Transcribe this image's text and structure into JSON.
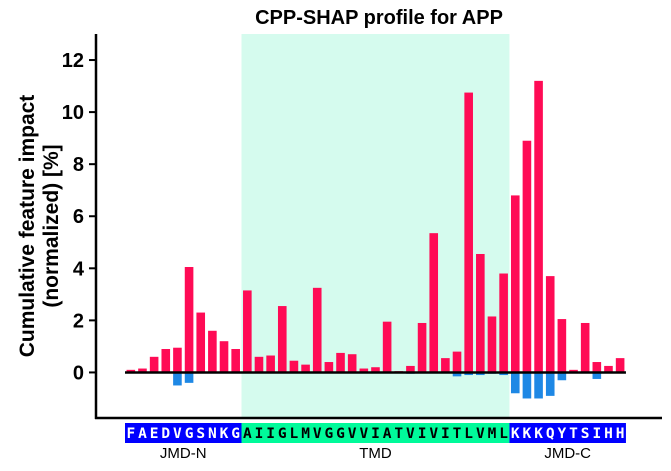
{
  "chart_data": {
    "type": "bar",
    "title": "CPP-SHAP profile for APP",
    "ylabel": "Cumulative feature impact\n(normalized) [%]",
    "xlabel": "",
    "ylim": [
      -1.75,
      13
    ],
    "yticks": [
      0,
      2,
      4,
      6,
      8,
      10,
      12
    ],
    "residues": [
      "F",
      "A",
      "E",
      "D",
      "V",
      "G",
      "S",
      "N",
      "K",
      "G",
      "A",
      "I",
      "I",
      "G",
      "L",
      "M",
      "V",
      "G",
      "G",
      "V",
      "V",
      "I",
      "A",
      "T",
      "V",
      "I",
      "V",
      "I",
      "T",
      "L",
      "V",
      "M",
      "L",
      "K",
      "K",
      "K",
      "Q",
      "Y",
      "T",
      "S",
      "I",
      "H",
      "H"
    ],
    "regions": [
      {
        "label": "JMD-N",
        "start": 0,
        "end": 10,
        "color": "#0000ff",
        "text_color": "#ffffff"
      },
      {
        "label": "TMD",
        "start": 10,
        "end": 33,
        "color": "#00fa9a",
        "text_color": "#000000",
        "shade": "#d5fbee"
      },
      {
        "label": "JMD-C",
        "start": 33,
        "end": 43,
        "color": "#0000ff",
        "text_color": "#ffffff"
      }
    ],
    "series": [
      {
        "color": "#ff0b55",
        "values": [
          0.1,
          0.15,
          0.6,
          0.9,
          0.95,
          4.05,
          2.3,
          1.6,
          1.2,
          0.9,
          3.15,
          0.6,
          0.65,
          2.55,
          0.45,
          0.3,
          3.25,
          0.4,
          0.75,
          0.7,
          0.15,
          0.2,
          1.95,
          0.05,
          0.25,
          1.9,
          5.35,
          0.55,
          0.8,
          10.75,
          4.55,
          2.15,
          3.8,
          6.8,
          8.9,
          11.2,
          3.7,
          2.05,
          0.1,
          1.9,
          0.4,
          0.25,
          0.55
        ]
      },
      {
        "color": "#1e88e5",
        "values": [
          0,
          0,
          0,
          0,
          -0.5,
          -0.4,
          0,
          0,
          0,
          0,
          0,
          0,
          0,
          0,
          0,
          0,
          0,
          0,
          0,
          0,
          0,
          0,
          0,
          0,
          -0.05,
          0,
          0,
          0,
          -0.15,
          -0.1,
          -0.1,
          -0.05,
          -0.1,
          -0.8,
          -1.0,
          -1.0,
          -0.9,
          -0.3,
          0,
          0,
          -0.25,
          0,
          0
        ]
      }
    ],
    "grid": false
  }
}
